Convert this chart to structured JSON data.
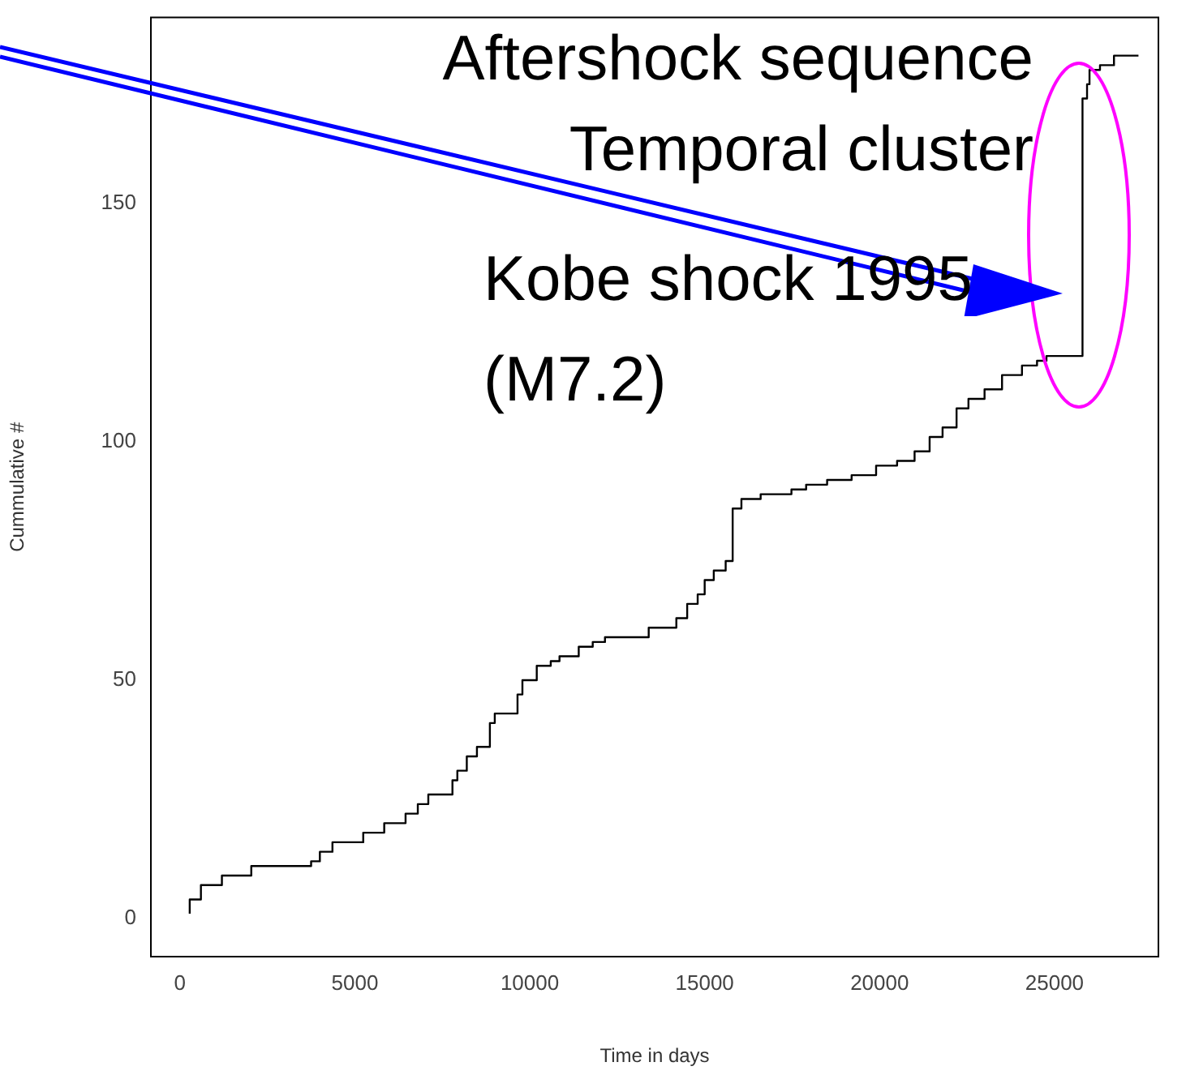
{
  "chart_data": {
    "type": "step",
    "xlabel": "Time in days",
    "ylabel": "Cummulative #",
    "annotations": [
      "Aftershock sequence",
      "Temporal cluster",
      "Kobe shock 1995",
      "(M7.2)"
    ],
    "x": [
      280,
      600,
      1200,
      2040,
      3750,
      4000,
      4360,
      5240,
      5840,
      6450,
      6800,
      7100,
      7790,
      7930,
      8200,
      8490,
      8860,
      9000,
      9650,
      9790,
      10200,
      10600,
      10850,
      11400,
      11800,
      12150,
      13400,
      14190,
      14500,
      14800,
      15000,
      15260,
      15600,
      15800,
      16050,
      16600,
      17480,
      17900,
      18500,
      19200,
      19900,
      20500,
      21000,
      21430,
      21800,
      22200,
      22540,
      23000,
      23500,
      24070,
      24500,
      24770,
      25800,
      25930,
      26000,
      26300,
      26700,
      27400
    ],
    "series": [
      {
        "color": "#000000",
        "values": [
          1,
          4,
          7,
          9,
          11,
          12,
          14,
          16,
          18,
          20,
          22,
          24,
          26,
          29,
          31,
          34,
          36,
          41,
          43,
          47,
          50,
          53,
          54,
          55,
          57,
          58,
          59,
          61,
          63,
          66,
          68,
          71,
          73,
          75,
          86,
          88,
          89,
          90,
          91,
          92,
          93,
          95,
          96,
          98,
          101,
          103,
          107,
          109,
          111,
          114,
          116,
          117,
          118,
          172,
          175,
          178,
          179,
          181
        ]
      }
    ],
    "xlim": [
      -830,
      27970
    ],
    "ylim": [
      -8,
      189
    ],
    "xticks": [
      0,
      5000,
      10000,
      15000,
      20000,
      25000
    ],
    "yticks": [
      0,
      50,
      100,
      150
    ],
    "grid": false,
    "legend": false,
    "marker": "none",
    "line_style": "solid"
  }
}
